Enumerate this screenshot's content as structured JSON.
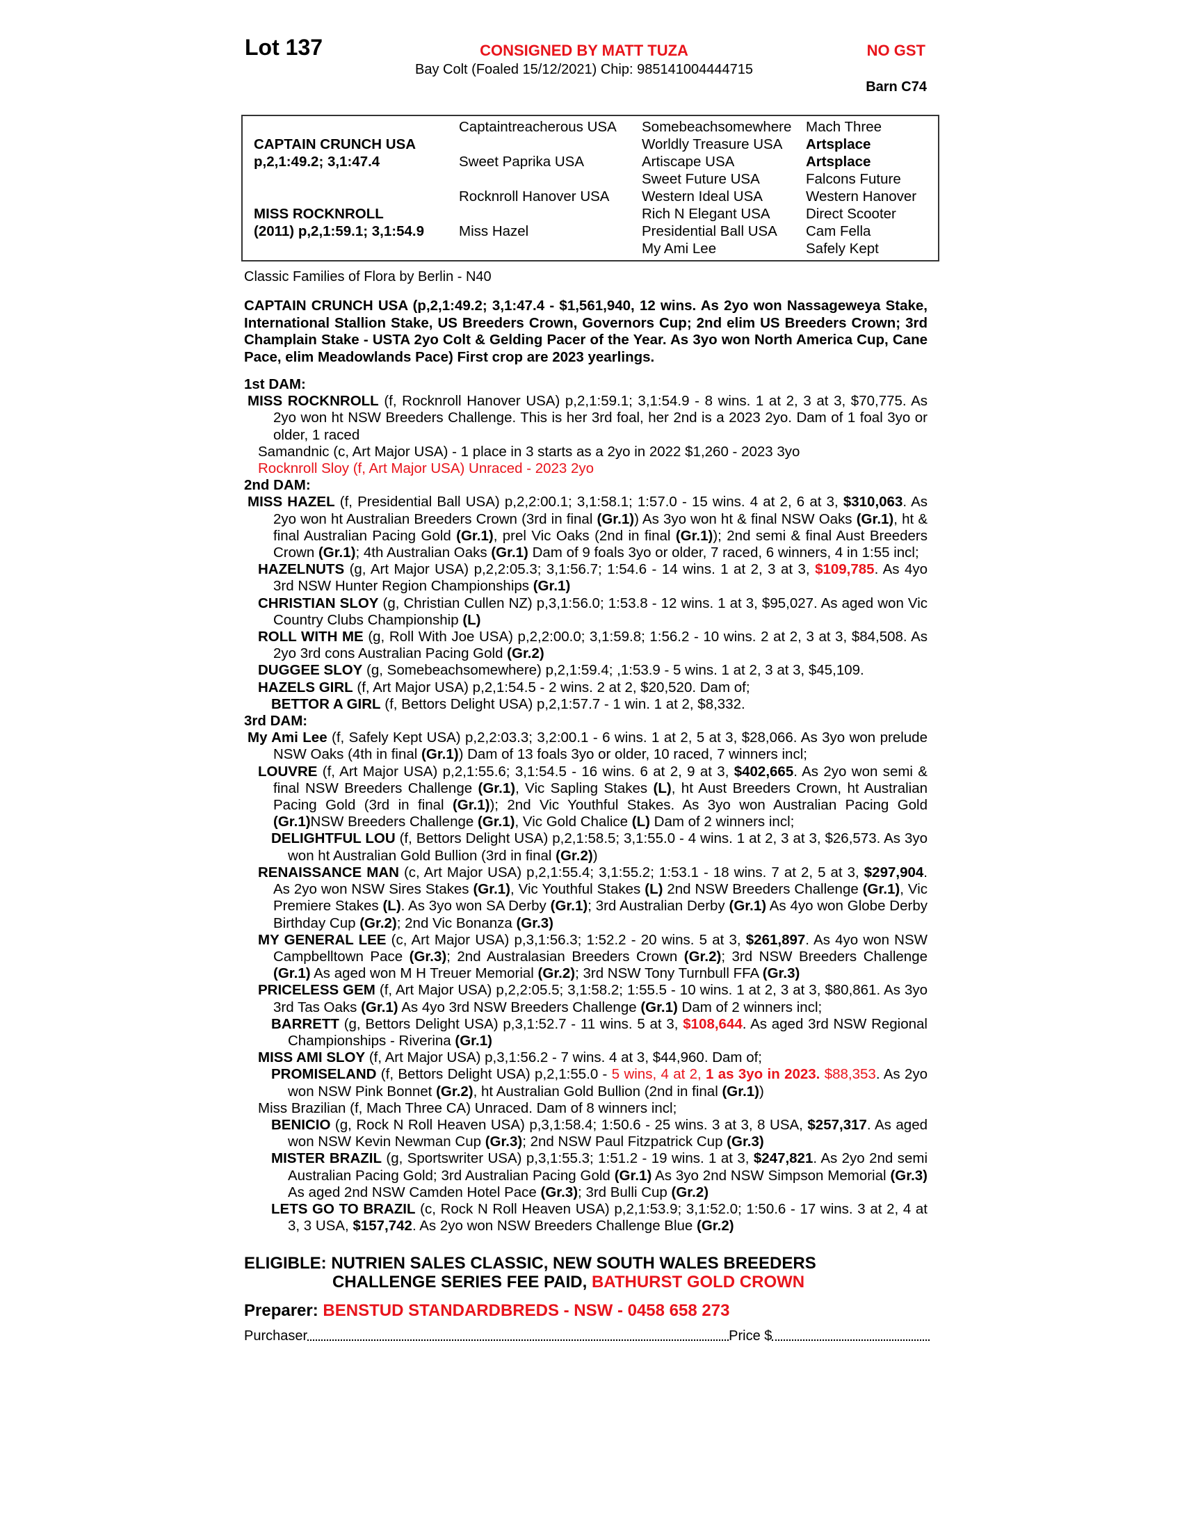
{
  "header": {
    "lot": "Lot 137",
    "consigned": "CONSIGNED BY MATT TUZA",
    "gst": "NO GST",
    "description": "Bay Colt (Foaled 15/12/2021) Chip: 985141004444715",
    "barn": "Barn C74"
  },
  "colors": {
    "accent_red": "#e8141b"
  },
  "pedigree": {
    "sire_name": "CAPTAIN CRUNCH USA",
    "sire_record": "p,2,1:49.2; 3,1:47.4",
    "dam_name": "MISS ROCKNROLL",
    "dam_record": "(2011) p,2,1:59.1; 3,1:54.9",
    "gen2": [
      "Captaintreacherous USA",
      "Sweet Paprika USA",
      "Rocknroll Hanover USA",
      "Miss Hazel"
    ],
    "gen3": [
      "Somebeachsomewhere",
      "Worldly Treasure USA",
      "Artiscape USA",
      "Sweet Future USA",
      "Western Ideal USA",
      "Rich N Elegant USA",
      "Presidential Ball USA",
      "My Ami Lee"
    ],
    "gen4": [
      "Mach Three",
      "Artsplace",
      "Artsplace",
      "Falcons Future",
      "Western Hanover",
      "Direct Scooter",
      "Cam Fella",
      "Safely Kept"
    ]
  },
  "family": "Classic Families of Flora by Berlin - N40",
  "sire_summary": "CAPTAIN CRUNCH USA (p,2,1:49.2; 3,1:47.4 - $1,561,940, 12 wins. As 2yo won Nassageweya Stake, International Stallion Stake, US Breeders Crown, Governors Cup; 2nd elim US Breeders Crown; 3rd Champlain Stake - USTA 2yo Colt & Gelding Pacer of the Year. As 3yo won North America Cup, Cane Pace, elim Meadowlands Pace) First crop are 2023 yearlings.",
  "sections": [
    {
      "title": "1st DAM:",
      "entries": [
        {
          "level": 0,
          "segments": [
            [
              "MISS ROCKNROLL",
              "b"
            ],
            [
              " (f, Rocknroll Hanover USA) p,2,1:59.1; 3,1:54.9 - 8 wins. 1 at 2, 3 at 3, $70,775. As 2yo won ht NSW Breeders Challenge. This is her 3rd foal, her 2nd is a 2023 2yo. Dam of 1 foal 3yo or older, 1 raced",
              ""
            ]
          ]
        },
        {
          "level": 1,
          "segments": [
            [
              "Samandnic (c, Art Major USA) - 1 place in 3 starts as a 2yo in 2022 $1,260 - 2023 3yo",
              ""
            ]
          ]
        },
        {
          "level": 1,
          "segments": [
            [
              "Rocknroll Sloy (f, Art Major USA) Unraced - 2023 2yo",
              "r"
            ]
          ]
        }
      ]
    },
    {
      "title": "2nd DAM:",
      "entries": [
        {
          "level": 0,
          "segments": [
            [
              "MISS HAZEL",
              "b"
            ],
            [
              " (f, Presidential Ball USA) p,2,2:00.1; 3,1:58.1; 1:57.0 - 15 wins. 4 at 2, 6 at 3, ",
              ""
            ],
            [
              "$310,063",
              "b"
            ],
            [
              ". As 2yo won ht Australian Breeders Crown (3rd in final ",
              ""
            ],
            [
              "(Gr.1)",
              "b"
            ],
            [
              ") As 3yo won ht & final NSW Oaks ",
              ""
            ],
            [
              "(Gr.1)",
              "b"
            ],
            [
              ", ht & final Australian Pacing Gold ",
              ""
            ],
            [
              "(Gr.1)",
              "b"
            ],
            [
              ", prel Vic Oaks (2nd in final ",
              ""
            ],
            [
              "(Gr.1)",
              "b"
            ],
            [
              "); 2nd semi & final Aust Breeders Crown ",
              ""
            ],
            [
              "(Gr.1)",
              "b"
            ],
            [
              "; 4th Australian Oaks ",
              ""
            ],
            [
              "(Gr.1)",
              "b"
            ],
            [
              " Dam of 9 foals 3yo or older, 7 raced, 6 winners, 4 in 1:55 incl;",
              ""
            ]
          ]
        },
        {
          "level": 1,
          "segments": [
            [
              "HAZELNUTS",
              "b"
            ],
            [
              " (g, Art Major USA) p,2,2:05.3; 3,1:56.7; 1:54.6 - 14 wins. 1 at 2, 3 at 3, ",
              ""
            ],
            [
              "$109,785",
              "br"
            ],
            [
              ". As 4yo 3rd NSW Hunter Region Championships ",
              ""
            ],
            [
              "(Gr.1)",
              "b"
            ]
          ]
        },
        {
          "level": 1,
          "segments": [
            [
              "CHRISTIAN SLOY",
              "b"
            ],
            [
              " (g, Christian Cullen NZ) p,3,1:56.0; 1:53.8 - 12 wins. 1 at 3, $95,027. As aged won Vic Country Clubs Championship ",
              ""
            ],
            [
              "(L)",
              "b"
            ]
          ]
        },
        {
          "level": 1,
          "segments": [
            [
              "ROLL WITH ME",
              "b"
            ],
            [
              " (g, Roll With Joe USA) p,2,2:00.0; 3,1:59.8; 1:56.2 - 10 wins. 2 at 2, 3 at 3, $84,508. As 2yo 3rd cons Australian Pacing Gold ",
              ""
            ],
            [
              "(Gr.2)",
              "b"
            ]
          ]
        },
        {
          "level": 1,
          "segments": [
            [
              "DUGGEE SLOY",
              "b"
            ],
            [
              " (g, Somebeachsomewhere) p,2,1:59.4; ,1:53.9 - 5 wins. 1 at 2, 3 at 3, $45,109.",
              ""
            ]
          ]
        },
        {
          "level": 1,
          "segments": [
            [
              "HAZELS GIRL",
              "b"
            ],
            [
              " (f, Art Major USA) p,2,1:54.5 - 2 wins. 2 at 2, $20,520. Dam of;",
              ""
            ]
          ]
        },
        {
          "level": 2,
          "segments": [
            [
              "BETTOR A GIRL",
              "b"
            ],
            [
              " (f, Bettors Delight USA) p,2,1:57.7 - 1 win. 1 at 2, $8,332.",
              ""
            ]
          ]
        }
      ]
    },
    {
      "title": "3rd DAM:",
      "entries": [
        {
          "level": 0,
          "segments": [
            [
              "My Ami Lee",
              "b"
            ],
            [
              " (f, Safely Kept USA) p,2,2:03.3; 3,2:00.1 - 6 wins. 1 at 2, 5 at 3, $28,066. As 3yo won prelude NSW Oaks (4th in final ",
              ""
            ],
            [
              "(Gr.1)",
              "b"
            ],
            [
              ") Dam of 13 foals 3yo or older, 10 raced, 7 winners incl;",
              ""
            ]
          ]
        },
        {
          "level": 1,
          "segments": [
            [
              "LOUVRE",
              "b"
            ],
            [
              " (f, Art Major USA) p,2,1:55.6; 3,1:54.5 - 16 wins. 6 at 2, 9 at 3, ",
              ""
            ],
            [
              "$402,665",
              "b"
            ],
            [
              ". As 2yo won semi & final NSW Breeders Challenge ",
              ""
            ],
            [
              "(Gr.1)",
              "b"
            ],
            [
              ", Vic Sapling Stakes ",
              ""
            ],
            [
              "(L)",
              "b"
            ],
            [
              ", ht Aust Breeders Crown, ht Australian Pacing Gold (3rd in final ",
              ""
            ],
            [
              "(Gr.1)",
              "b"
            ],
            [
              "); 2nd Vic Youthful Stakes. As 3yo won Australian Pacing Gold ",
              ""
            ],
            [
              "(Gr.1)",
              "b"
            ],
            [
              "NSW Breeders Challenge ",
              ""
            ],
            [
              "(Gr.1)",
              "b"
            ],
            [
              ", Vic Gold Chalice ",
              ""
            ],
            [
              "(L)",
              "b"
            ],
            [
              " Dam of 2 winners incl;",
              ""
            ]
          ]
        },
        {
          "level": 2,
          "segments": [
            [
              "DELIGHTFUL LOU",
              "b"
            ],
            [
              " (f, Bettors Delight USA) p,2,1:58.5; 3,1:55.0 - 4 wins. 1 at 2, 3 at 3, $26,573. As 3yo won ht Australian Gold Bullion (3rd in final ",
              ""
            ],
            [
              "(Gr.2)",
              "b"
            ],
            [
              ")",
              ""
            ]
          ]
        },
        {
          "level": 1,
          "segments": [
            [
              "RENAISSANCE MAN",
              "b"
            ],
            [
              " (c, Art Major USA) p,2,1:55.4; 3,1:55.2; 1:53.1 - 18 wins. 7 at 2, 5 at 3, ",
              ""
            ],
            [
              "$297,904",
              "b"
            ],
            [
              ". As 2yo won NSW Sires Stakes ",
              ""
            ],
            [
              "(Gr.1)",
              "b"
            ],
            [
              ", Vic Youthful Stakes ",
              ""
            ],
            [
              "(L)",
              "b"
            ],
            [
              " 2nd NSW Breeders Challenge ",
              ""
            ],
            [
              "(Gr.1)",
              "b"
            ],
            [
              ", Vic Premiere Stakes ",
              ""
            ],
            [
              "(L)",
              "b"
            ],
            [
              ". As 3yo won SA Derby ",
              ""
            ],
            [
              "(Gr.1)",
              "b"
            ],
            [
              "; 3rd Australian Derby ",
              ""
            ],
            [
              "(Gr.1)",
              "b"
            ],
            [
              " As 4yo won Globe Derby Birthday Cup ",
              ""
            ],
            [
              "(Gr.2)",
              "b"
            ],
            [
              "; 2nd Vic Bonanza ",
              ""
            ],
            [
              "(Gr.3)",
              "b"
            ]
          ]
        },
        {
          "level": 1,
          "segments": [
            [
              "MY GENERAL LEE",
              "b"
            ],
            [
              " (c, Art Major USA) p,3,1:56.3; 1:52.2 - 20 wins. 5 at 3, ",
              ""
            ],
            [
              "$261,897",
              "b"
            ],
            [
              ". As 4yo won NSW Campbelltown Pace ",
              ""
            ],
            [
              "(Gr.3)",
              "b"
            ],
            [
              "; 2nd Australasian Breeders Crown ",
              ""
            ],
            [
              "(Gr.2)",
              "b"
            ],
            [
              "; 3rd NSW Breeders Challenge ",
              ""
            ],
            [
              "(Gr.1)",
              "b"
            ],
            [
              " As aged won M H Treuer Memorial ",
              ""
            ],
            [
              "(Gr.2)",
              "b"
            ],
            [
              "; 3rd NSW Tony Turnbull FFA ",
              ""
            ],
            [
              "(Gr.3)",
              "b"
            ]
          ]
        },
        {
          "level": 1,
          "segments": [
            [
              "PRICELESS GEM",
              "b"
            ],
            [
              " (f, Art Major USA) p,2,2:05.5; 3,1:58.2; 1:55.5 - 10 wins. 1 at 2, 3 at 3, $80,861. As 3yo 3rd Tas Oaks ",
              ""
            ],
            [
              "(Gr.1)",
              "b"
            ],
            [
              " As 4yo 3rd NSW Breeders Challenge ",
              ""
            ],
            [
              "(Gr.1)",
              "b"
            ],
            [
              " Dam of 2 winners incl;",
              ""
            ]
          ]
        },
        {
          "level": 2,
          "segments": [
            [
              "BARRETT",
              "b"
            ],
            [
              " (g, Bettors Delight USA) p,3,1:52.7 - 11 wins. 5 at 3, ",
              ""
            ],
            [
              "$108,644",
              "br"
            ],
            [
              ". As aged 3rd NSW Regional Championships - Riverina ",
              ""
            ],
            [
              "(Gr.1)",
              "b"
            ]
          ]
        },
        {
          "level": 1,
          "segments": [
            [
              "MISS AMI SLOY",
              "b"
            ],
            [
              " (f, Art Major USA) p,3,1:56.2 - 7 wins. 4 at 3, $44,960. Dam of;",
              ""
            ]
          ]
        },
        {
          "level": 2,
          "segments": [
            [
              "PROMISELAND",
              "b"
            ],
            [
              " (f, Bettors Delight USA) p,2,1:55.0 - ",
              ""
            ],
            [
              "5 wins, 4 at 2, ",
              "r"
            ],
            [
              "1 as 3yo in 2023.",
              "br"
            ],
            [
              " $88,353",
              "r"
            ],
            [
              ". As 2yo won NSW Pink Bonnet ",
              ""
            ],
            [
              "(Gr.2)",
              "b"
            ],
            [
              ", ht Australian Gold Bullion (2nd in final ",
              ""
            ],
            [
              "(Gr.1)",
              "b"
            ],
            [
              ")",
              ""
            ]
          ]
        },
        {
          "level": 1,
          "segments": [
            [
              "Miss Brazilian (f, Mach Three CA) Unraced. Dam of 8 winners incl;",
              ""
            ]
          ]
        },
        {
          "level": 2,
          "segments": [
            [
              "BENICIO",
              "b"
            ],
            [
              " (g, Rock N Roll Heaven USA) p,3,1:58.4; 1:50.6 - 25 wins. 3 at 3, 8 USA, ",
              ""
            ],
            [
              "$257,317",
              "b"
            ],
            [
              ". As aged won NSW Kevin Newman Cup ",
              ""
            ],
            [
              "(Gr.3)",
              "b"
            ],
            [
              "; 2nd NSW Paul Fitzpatrick Cup ",
              ""
            ],
            [
              "(Gr.3)",
              "b"
            ]
          ]
        },
        {
          "level": 2,
          "segments": [
            [
              "MISTER BRAZIL",
              "b"
            ],
            [
              " (g, Sportswriter USA) p,3,1:55.3; 1:51.2 - 19 wins. 1 at 3, ",
              ""
            ],
            [
              "$247,821",
              "b"
            ],
            [
              ". As 2yo 2nd semi Australian Pacing Gold; 3rd Australian Pacing Gold ",
              ""
            ],
            [
              "(Gr.1)",
              "b"
            ],
            [
              " As 3yo 2nd NSW Simpson Memorial ",
              ""
            ],
            [
              "(Gr.3)",
              "b"
            ],
            [
              " As aged 2nd NSW Camden Hotel Pace ",
              ""
            ],
            [
              "(Gr.3)",
              "b"
            ],
            [
              "; 3rd Bulli Cup ",
              ""
            ],
            [
              "(Gr.2)",
              "b"
            ]
          ]
        },
        {
          "level": 2,
          "segments": [
            [
              "LETS GO TO BRAZIL",
              "b"
            ],
            [
              " (c, Rock N Roll Heaven USA) p,2,1:53.9; 3,1:52.0; 1:50.6 - 17 wins. 3 at 2, 4 at 3, 3 USA, ",
              ""
            ],
            [
              "$157,742",
              "b"
            ],
            [
              ". As 2yo won NSW Breeders Challenge Blue ",
              ""
            ],
            [
              "(Gr.2)",
              "b"
            ]
          ]
        }
      ]
    }
  ],
  "eligible": {
    "line1": "ELIGIBLE: NUTRIEN SALES CLASSIC, NEW SOUTH WALES BREEDERS",
    "line2": "CHALLENGE SERIES FEE PAID, ",
    "line2_red": "BATHURST GOLD CROWN"
  },
  "preparer": {
    "label": "Preparer: ",
    "value": "BENSTUD STANDARDBREDS - NSW - 0458 658 273"
  },
  "purchase": {
    "purchaser_label": "Purchaser",
    "price_label": "Price $"
  }
}
